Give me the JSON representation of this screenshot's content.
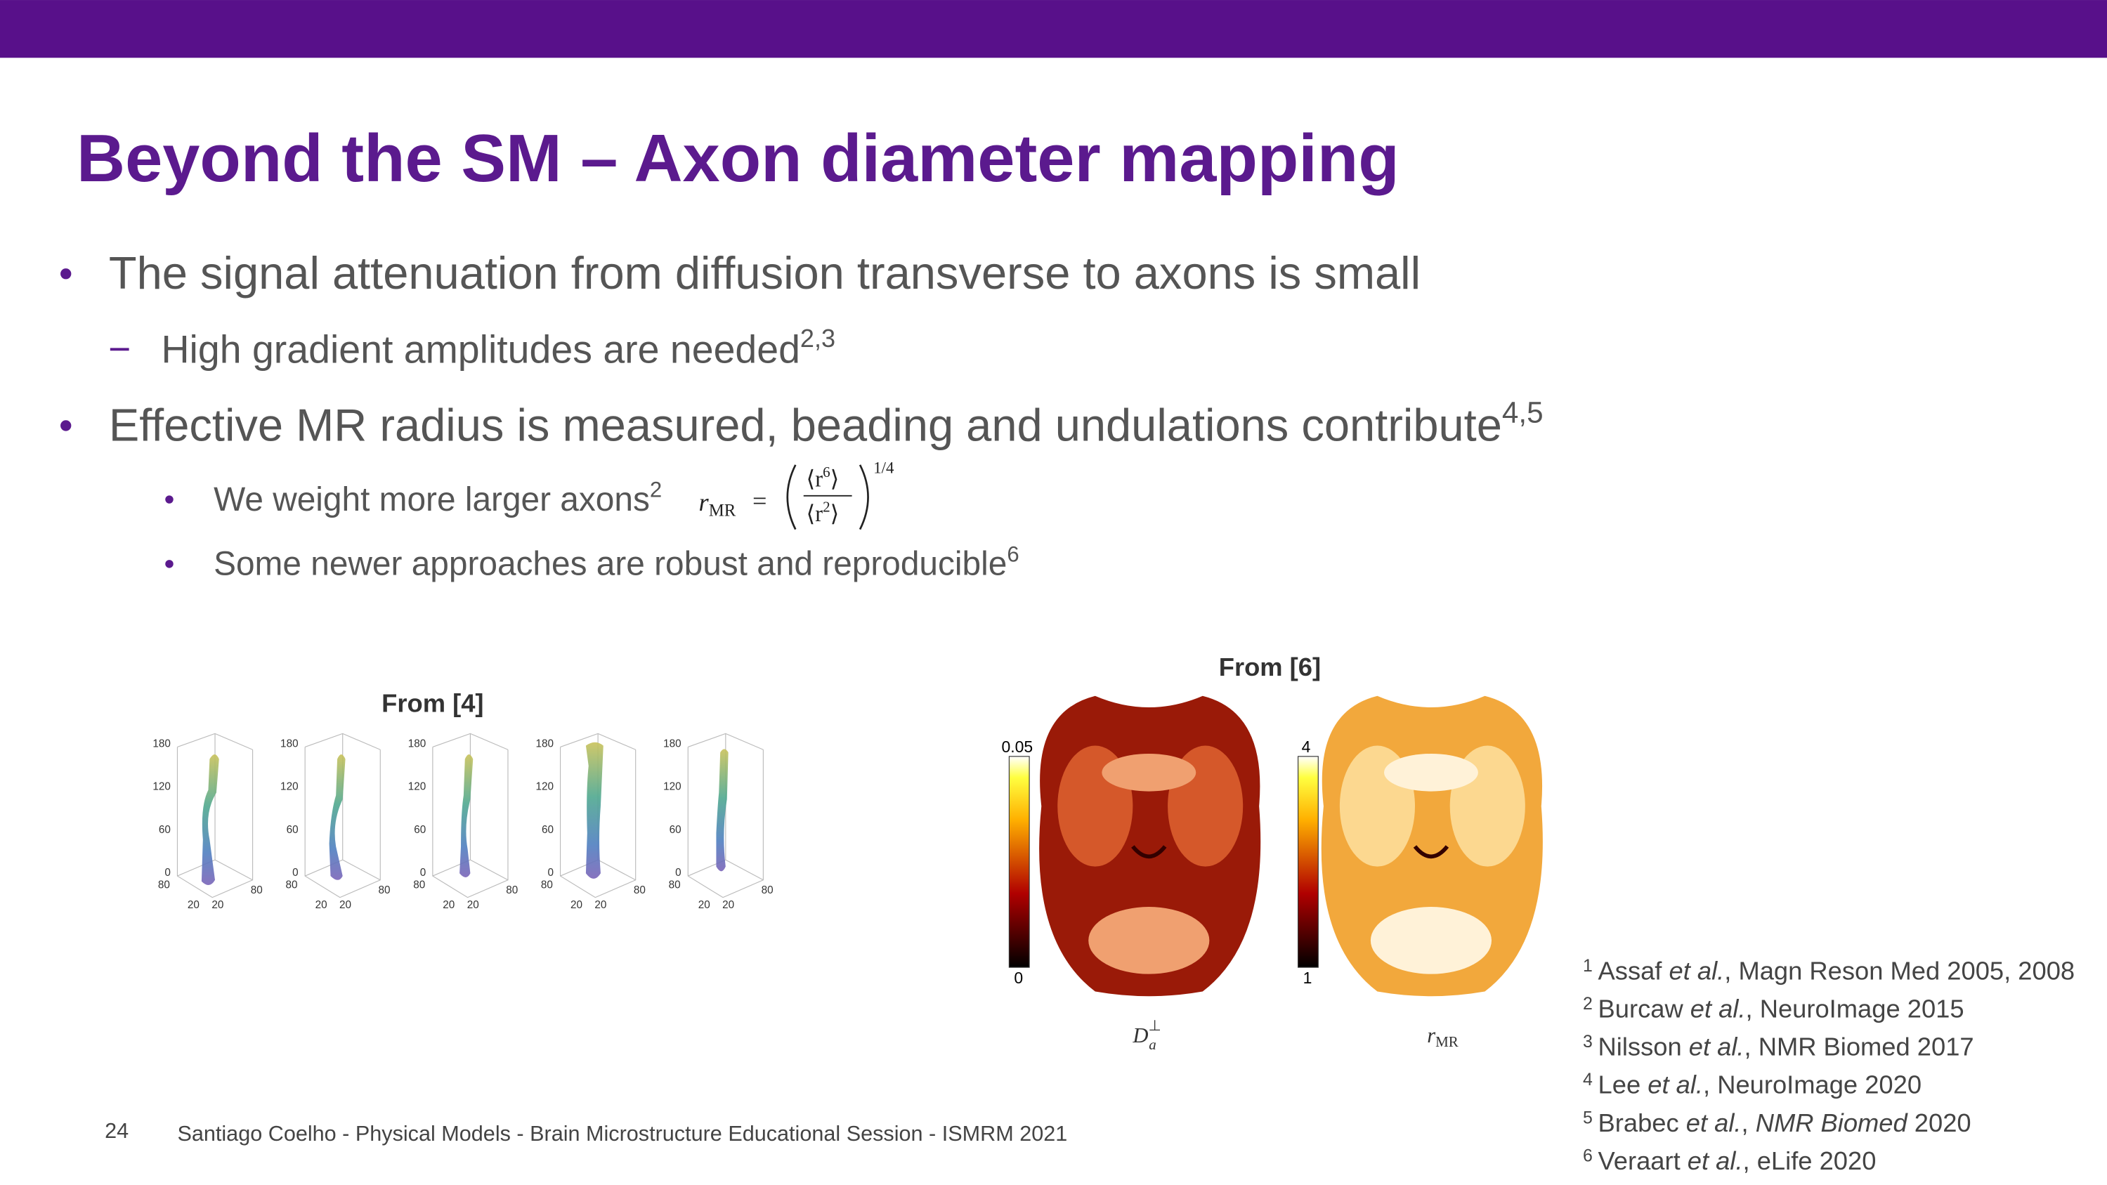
{
  "header": {
    "title": "Beyond the SM – Axon diameter mapping"
  },
  "bullets": [
    {
      "level": 1,
      "text": "The signal attenuation from diffusion transverse to axons is small"
    },
    {
      "level": 2,
      "text": "High gradient amplitudes are needed",
      "sup": "2,3"
    },
    {
      "level": 1,
      "text": "Effective MR radius is measured, beading and undulations contribute",
      "sup": "4,5"
    },
    {
      "level": 3,
      "text": "We weight more larger axons",
      "sup": "2"
    },
    {
      "level": 3,
      "text": "Some newer approaches are robust and reproducible",
      "sup": "6"
    }
  ],
  "formula": {
    "symbol": "r",
    "subscript": "MR",
    "equals": "=",
    "numerator": {
      "base": "⟨r",
      "exp": "6",
      "close": "⟩"
    },
    "denominator": {
      "base": "⟨r",
      "exp": "2",
      "close": "⟩"
    },
    "power": "1/4"
  },
  "figure_left": {
    "caption": "From [4]",
    "plots": [
      {
        "zticks": [
          180,
          120,
          60,
          0
        ],
        "depth_labels": [
          80,
          80
        ],
        "width_labels": [
          20,
          20
        ]
      },
      {
        "zticks": [
          180,
          120,
          60,
          0
        ],
        "depth_labels": [
          80,
          80
        ],
        "width_labels": [
          20,
          20
        ]
      },
      {
        "zticks": [
          180,
          120,
          60,
          0
        ],
        "depth_labels": [
          80,
          80
        ],
        "width_labels": [
          20,
          20
        ]
      },
      {
        "zticks": [
          180,
          120,
          60,
          0
        ],
        "depth_labels": [
          80,
          80
        ],
        "width_labels": [
          20,
          20
        ]
      },
      {
        "zticks": [
          180,
          120,
          60,
          0
        ],
        "depth_labels": [
          80,
          80
        ],
        "width_labels": [
          20,
          20
        ]
      }
    ]
  },
  "figure_right": {
    "caption": "From [6]",
    "maps": [
      {
        "colorbar": {
          "max": 0.05,
          "min": 0
        },
        "label": {
          "symbol": "D",
          "sub": "a",
          "sup": "⊥"
        }
      },
      {
        "colorbar": {
          "max": 4,
          "min": 1
        },
        "label": {
          "symbol": "r",
          "sub": "MR"
        }
      }
    ]
  },
  "references": [
    {
      "num": "1",
      "parts": [
        {
          "text": "Assaf "
        },
        {
          "text": "et al.",
          "italic": true
        },
        {
          "text": ", Magn Reson Med 2005, 2008"
        }
      ]
    },
    {
      "num": "2",
      "parts": [
        {
          "text": "Burcaw "
        },
        {
          "text": "et al.",
          "italic": true
        },
        {
          "text": ", NeuroImage 2015"
        }
      ]
    },
    {
      "num": "3",
      "parts": [
        {
          "text": "Nilsson "
        },
        {
          "text": "et al.",
          "italic": true
        },
        {
          "text": ", NMR Biomed 2017"
        }
      ]
    },
    {
      "num": "4",
      "parts": [
        {
          "text": "Lee "
        },
        {
          "text": "et al.",
          "italic": true
        },
        {
          "text": ", NeuroImage 2020"
        }
      ]
    },
    {
      "num": "5",
      "parts": [
        {
          "text": "Brabec "
        },
        {
          "text": "et al.",
          "italic": true
        },
        {
          "text": ", "
        },
        {
          "text": "NMR Biomed",
          "italic": true
        },
        {
          "text": " 2020"
        }
      ]
    },
    {
      "num": "6",
      "parts": [
        {
          "text": "Veraart "
        },
        {
          "text": "et al.",
          "italic": true
        },
        {
          "text": ", eLife 2020"
        }
      ]
    }
  ],
  "footer": {
    "page": "24",
    "text": "Santiago Coelho - Physical Models - Brain Microstructure Educational Session - ISMRM 2021"
  }
}
